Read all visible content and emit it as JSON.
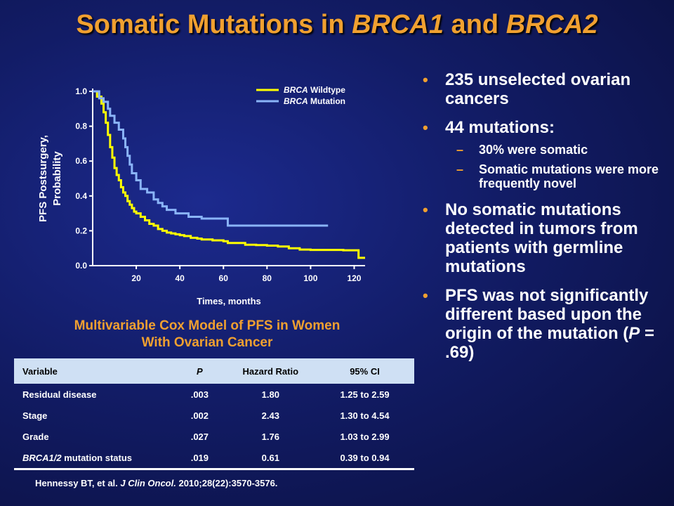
{
  "title": {
    "prefix": "Somatic Mutations in ",
    "gene1": "BRCA1",
    "mid": " and ",
    "gene2": "BRCA2"
  },
  "chart_data": {
    "type": "line",
    "xlabel": "Times, months",
    "ylabel_line1": "PFS Postsurgery,",
    "ylabel_line2": "Probability",
    "xlim": [
      0,
      125
    ],
    "ylim": [
      0,
      1.0
    ],
    "x_ticks": [
      "20",
      "40",
      "60",
      "80",
      "100",
      "120"
    ],
    "y_ticks": [
      "0.0",
      "0.2",
      "0.4",
      "0.6",
      "0.8",
      "1.0"
    ],
    "legend_position": "top-right",
    "series": [
      {
        "name_italic": "BRCA",
        "name_rest": " Wildtype",
        "color": "#ffff00",
        "x": [
          0,
          2,
          4,
          5,
          6,
          7,
          8,
          9,
          10,
          11,
          12,
          13,
          14,
          15,
          16,
          17,
          18,
          19,
          20,
          22,
          24,
          26,
          28,
          30,
          32,
          34,
          36,
          38,
          40,
          42,
          45,
          48,
          50,
          55,
          60,
          62,
          70,
          75,
          80,
          85,
          90,
          95,
          100,
          110,
          115,
          120,
          122,
          125
        ],
        "y": [
          1.0,
          0.97,
          0.93,
          0.88,
          0.82,
          0.75,
          0.68,
          0.62,
          0.56,
          0.52,
          0.49,
          0.45,
          0.42,
          0.4,
          0.37,
          0.35,
          0.33,
          0.31,
          0.3,
          0.28,
          0.26,
          0.24,
          0.23,
          0.21,
          0.2,
          0.19,
          0.185,
          0.18,
          0.175,
          0.17,
          0.16,
          0.155,
          0.15,
          0.145,
          0.14,
          0.13,
          0.12,
          0.118,
          0.115,
          0.11,
          0.1,
          0.092,
          0.09,
          0.09,
          0.088,
          0.088,
          0.045,
          0.045
        ]
      },
      {
        "name_italic": "BRCA",
        "name_rest": " Mutation",
        "color": "#8ab4f8",
        "x": [
          0,
          3,
          5,
          7,
          8,
          10,
          12,
          14,
          15,
          16,
          17,
          18,
          20,
          22,
          25,
          28,
          30,
          32,
          34,
          38,
          40,
          44,
          50,
          55,
          60,
          62,
          70,
          80,
          100,
          108
        ],
        "y": [
          1.0,
          0.96,
          0.94,
          0.9,
          0.86,
          0.82,
          0.78,
          0.73,
          0.68,
          0.63,
          0.58,
          0.53,
          0.49,
          0.44,
          0.42,
          0.38,
          0.36,
          0.34,
          0.32,
          0.3,
          0.3,
          0.28,
          0.27,
          0.27,
          0.27,
          0.23,
          0.23,
          0.23,
          0.23,
          0.23
        ]
      }
    ]
  },
  "table": {
    "title_line1": "Multivariable Cox Model of PFS in Women",
    "title_line2": "With Ovarian Cancer",
    "headers": {
      "variable": "Variable",
      "p": "P",
      "hr": "Hazard Ratio",
      "ci": "95% CI"
    },
    "rows": [
      {
        "variable": "Residual  disease",
        "p": ".003",
        "hr": "1.80",
        "ci": "1.25  to 2.59"
      },
      {
        "variable": "Stage",
        "p": ".002",
        "hr": "2.43",
        "ci": "1.30  to 4.54"
      },
      {
        "variable": "Grade",
        "p": ".027",
        "hr": "1.76",
        "ci": "1.03  to 2.99"
      },
      {
        "variable_italic": "BRCA1/2",
        "variable_rest": "  mutation  status",
        "p": ".019",
        "hr": "0.61",
        "ci": "0.39  to 0.94"
      }
    ]
  },
  "citation": {
    "authors": "Hennessy BT, et al. ",
    "journal": "J Clin Oncol.",
    "details": " 2010;28(22):3570-3576."
  },
  "bullets": {
    "b1": "235 unselected ovarian cancers",
    "b2": "44 mutations:",
    "b2_sub1": "30%  were somatic",
    "b2_sub2": "Somatic mutations were more frequently   novel",
    "b3": "No somatic mutations detected in tumors from patients with germline mutations",
    "b4_pre": "PFS was not significantly different based upon the origin of the mutation (",
    "b4_p": "P",
    "b4_post": " = .69)"
  }
}
